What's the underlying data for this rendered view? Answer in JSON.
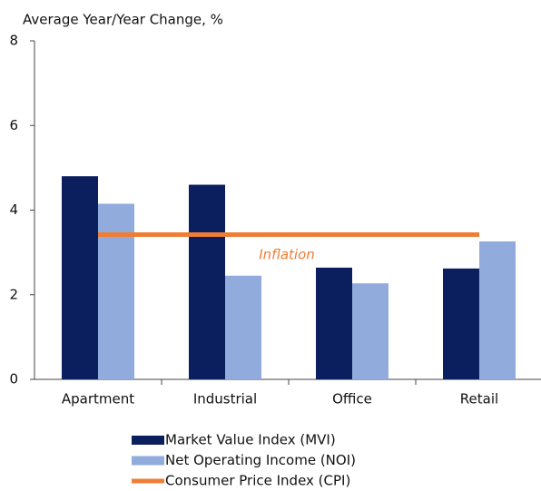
{
  "chart_data": {
    "type": "bar",
    "y_axis_label": "Average Year/Year Change, %",
    "categories": [
      "Apartment",
      "Industrial",
      "Office",
      "Retail"
    ],
    "series": [
      {
        "name": "Market Value Index (MVI)",
        "color": "#0b1f5e",
        "values": [
          4.8,
          4.6,
          2.64,
          2.62
        ]
      },
      {
        "name": "Net Operating Income (NOI)",
        "color": "#92abdd",
        "values": [
          4.15,
          2.45,
          2.27,
          3.26
        ]
      },
      {
        "name": "Consumer Price Index (CPI)",
        "color": "#ef7d35",
        "type": "line",
        "values": [
          3.42,
          3.42,
          3.42,
          3.42
        ]
      }
    ],
    "annotations": [
      {
        "text": "Inflation",
        "color": "#ef7d35"
      }
    ],
    "ylim": [
      0,
      8
    ],
    "yticks": [
      0,
      2,
      4,
      6,
      8
    ],
    "grid": false,
    "legend": "bottom"
  }
}
